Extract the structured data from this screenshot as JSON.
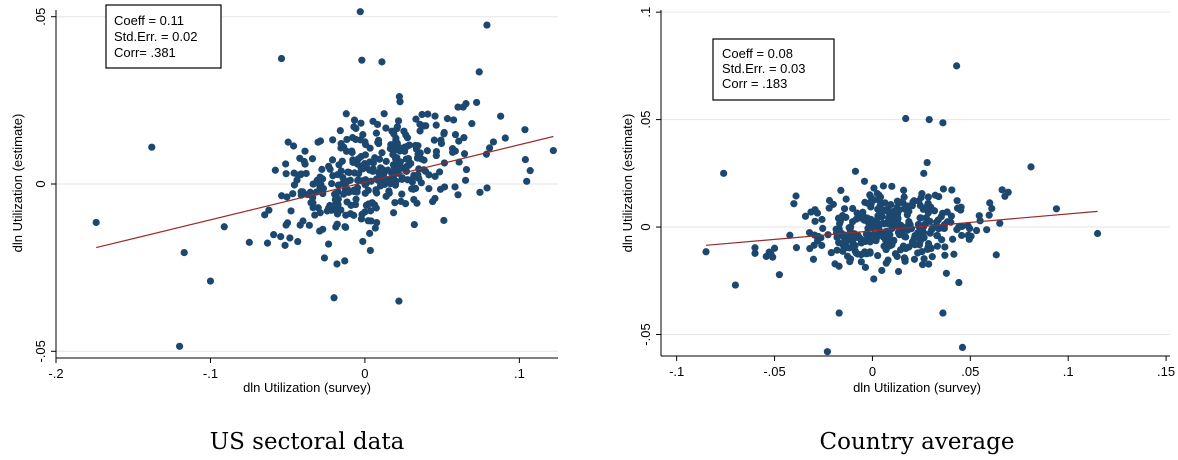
{
  "chart_data": [
    {
      "type": "scatter",
      "caption": "US sectoral data",
      "xlabel": "dln Utilization (survey)",
      "ylabel": "dln Utilization (estimate)",
      "xlim": [
        -0.2,
        0.125
      ],
      "ylim": [
        -0.052,
        0.052
      ],
      "xticks": [
        -0.2,
        -0.1,
        0,
        0.1
      ],
      "xtick_labels": [
        "-.2",
        "-.1",
        "0",
        ".1"
      ],
      "yticks": [
        -0.05,
        0,
        0.05
      ],
      "ytick_labels": [
        "-.05",
        "0",
        ".05"
      ],
      "grid": true,
      "stats": [
        "Coeff = 0.11",
        "Std.Err. = 0.02",
        "Corr= .381"
      ],
      "fit_line": {
        "x": [
          -0.174,
          0.122
        ],
        "y": [
          -0.019,
          0.0142
        ]
      },
      "colors": {
        "points": "#1c4870",
        "fit": "#9b2a2a",
        "grid": "#e6e6e6"
      }
    },
    {
      "type": "scatter",
      "caption": "Country average",
      "xlabel": "dln Utilization (survey)",
      "ylabel": "dln Utilization (estimate)",
      "xlim": [
        -0.108,
        0.152
      ],
      "ylim": [
        -0.06,
        0.101
      ],
      "xticks": [
        -0.1,
        -0.05,
        0,
        0.05,
        0.1,
        0.15
      ],
      "xtick_labels": [
        "-.1",
        "-.05",
        "0",
        ".05",
        ".1",
        ".15"
      ],
      "yticks": [
        -0.05,
        0,
        0.05,
        0.1
      ],
      "ytick_labels": [
        "-.05",
        "0",
        ".05",
        ".1"
      ],
      "grid": true,
      "stats": [
        "Coeff = 0.08",
        "Std.Err. = 0.03",
        "Corr = .183"
      ],
      "fit_line": {
        "x": [
          -0.085,
          0.115
        ],
        "y": [
          -0.0085,
          0.0073
        ]
      },
      "colors": {
        "points": "#1c4870",
        "fit": "#9b2a2a",
        "grid": "#e6e6e6"
      }
    }
  ]
}
